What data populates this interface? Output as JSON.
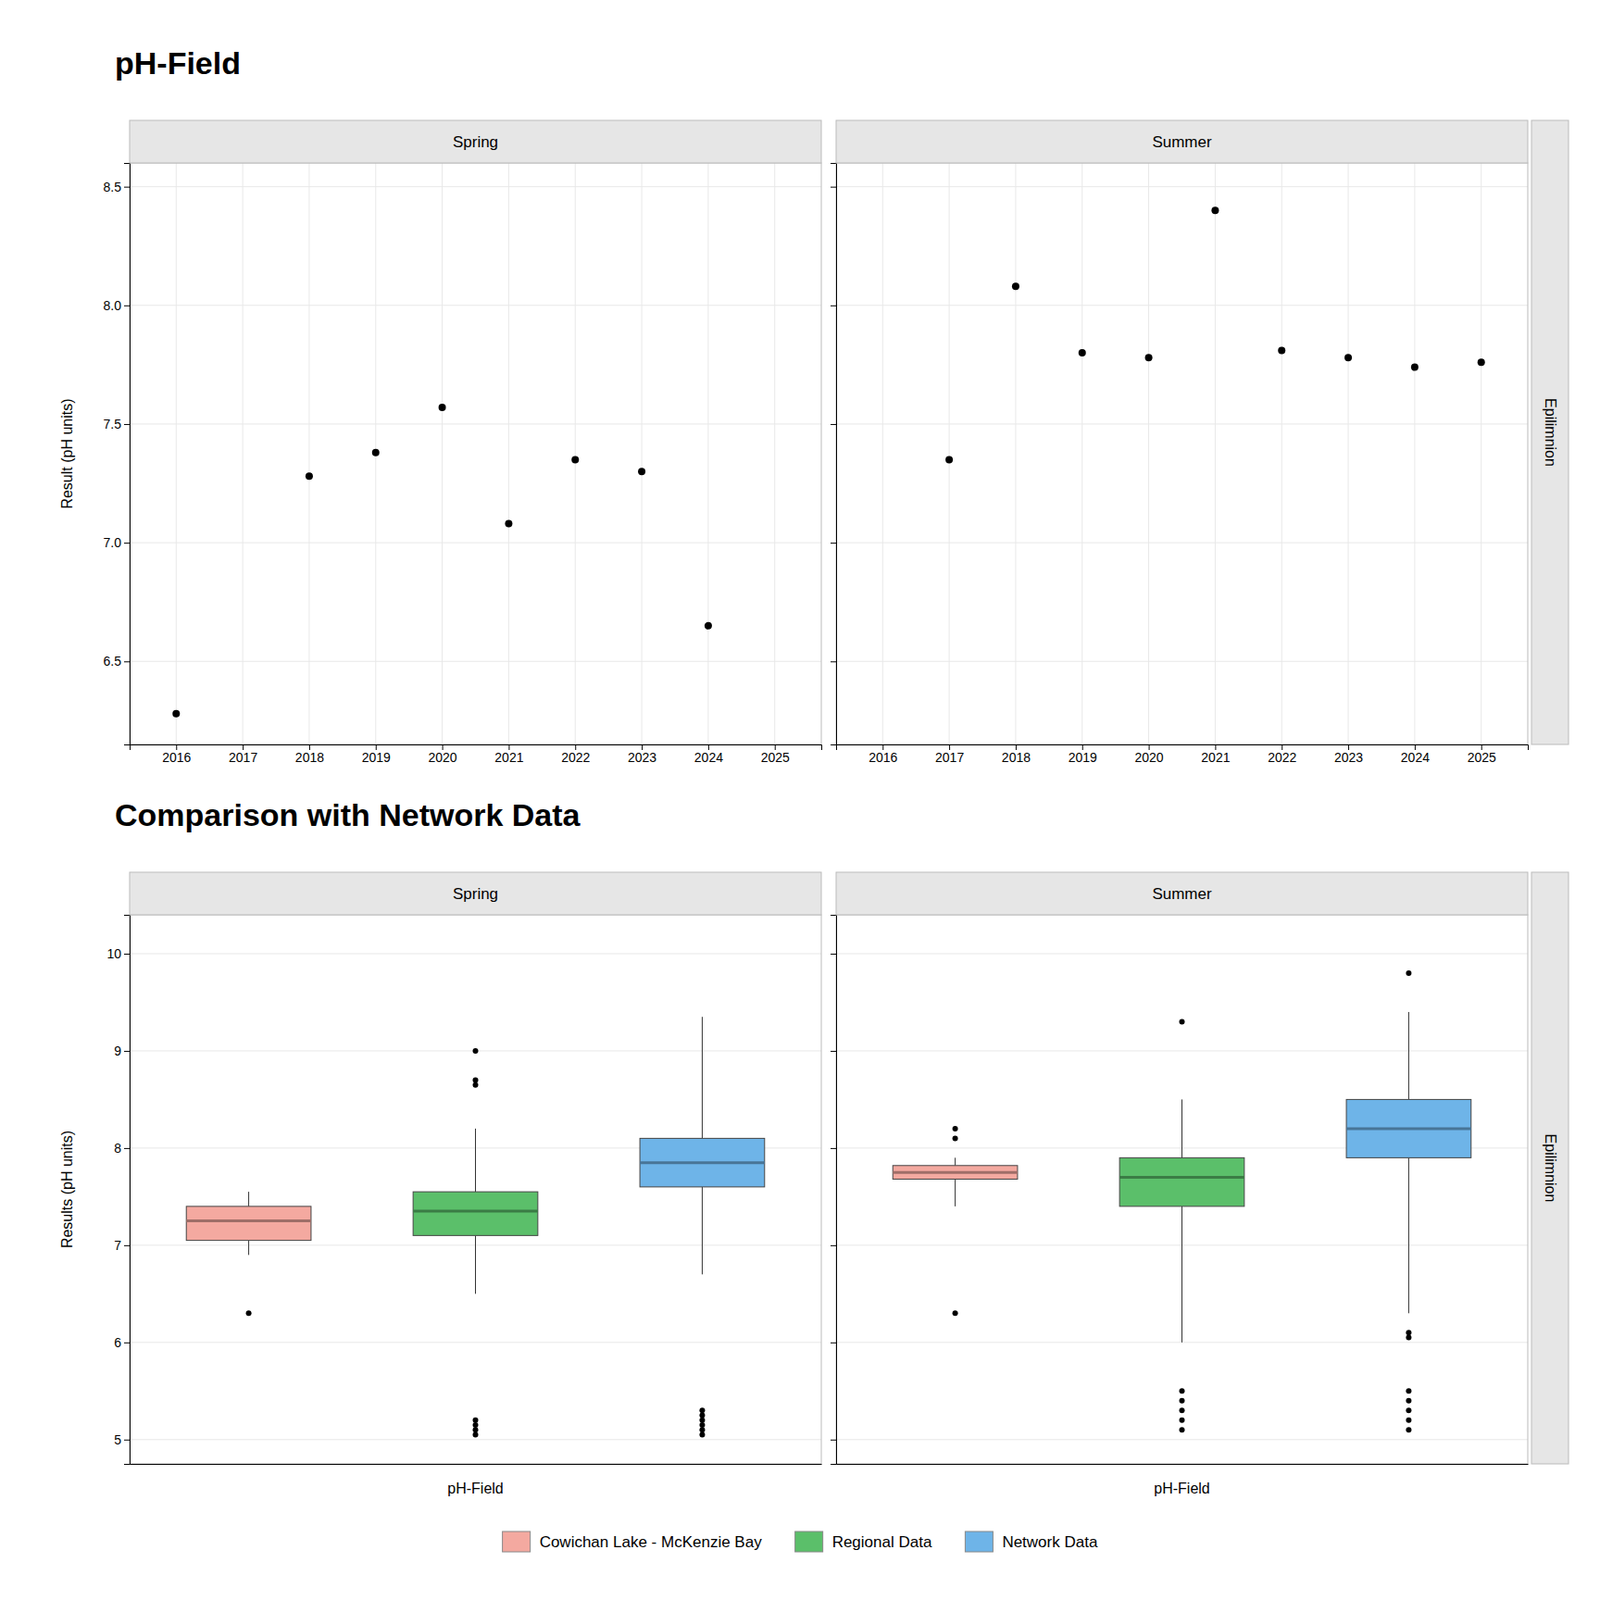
{
  "chart_data": [
    {
      "type": "scatter",
      "title": "pH-Field",
      "subtitle": "Spring",
      "y_label": "Result (pH units)",
      "x": [
        2016,
        2018,
        2019,
        2020,
        2021,
        2022,
        2023,
        2024
      ],
      "values": [
        6.28,
        7.28,
        7.38,
        7.57,
        7.08,
        7.35,
        7.3,
        6.65
      ],
      "color": "#000000",
      "xlim": [
        2015.3,
        2025.7
      ],
      "xticks": [
        2016,
        2017,
        2018,
        2019,
        2020,
        2021,
        2022,
        2023,
        2024,
        2025
      ],
      "ylim": [
        6.15,
        8.6
      ],
      "yticks": [
        6.5,
        {
          "value": 7,
          "label": "7.0"
        },
        7.5,
        {
          "value": 8,
          "label": "8.0"
        },
        8.5
      ],
      "grid": true
    },
    {
      "type": "scatter",
      "subtitle": "Summer",
      "annotations": [
        "Epilimnion"
      ],
      "x": [
        2017,
        2018,
        2019,
        2020,
        2021,
        2022,
        2023,
        2024,
        2025
      ],
      "values": [
        7.35,
        8.08,
        7.8,
        7.78,
        8.4,
        7.81,
        7.78,
        7.74,
        7.76
      ],
      "color": "#000000",
      "xlim": [
        2015.3,
        2025.7
      ],
      "xticks": [
        2016,
        2017,
        2018,
        2019,
        2020,
        2021,
        2022,
        2023,
        2024,
        2025
      ],
      "ylim": [
        6.15,
        8.6
      ],
      "yticks": [
        6.5,
        {
          "value": 7,
          "label": "7.0"
        },
        7.5,
        {
          "value": 8,
          "label": "8.0"
        },
        8.5
      ],
      "grid": true,
      "tick_labels": "x"
    },
    {
      "type": "box",
      "title": "Comparison with Network Data",
      "subtitle": "Spring",
      "x_label": "pH-Field",
      "y_label": "Results (pH units)",
      "series": [
        {
          "name": "Cowichan Lake - McKenzie Bay",
          "color": "#F4A9A0",
          "median": 7.25,
          "q1": 7.05,
          "q3": 7.4,
          "whisker_low": 6.9,
          "whisker_high": 7.55,
          "outliers_low": [
            6.3
          ],
          "outliers_high": []
        },
        {
          "name": "Regional Data",
          "color": "#5BBF6A",
          "median": 7.35,
          "q1": 7.1,
          "q3": 7.55,
          "whisker_low": 6.5,
          "whisker_high": 8.2,
          "outliers_low": [
            5.05,
            5.1,
            5.15,
            5.2
          ],
          "outliers_high": [
            8.65,
            8.7,
            9.0
          ]
        },
        {
          "name": "Network Data",
          "color": "#6EB4E8",
          "median": 7.85,
          "q1": 7.6,
          "q3": 8.1,
          "whisker_low": 6.7,
          "whisker_high": 9.35,
          "outliers_low": [
            5.05,
            5.1,
            5.15,
            5.2,
            5.25,
            5.3
          ],
          "outliers_high": []
        }
      ],
      "ylim": [
        4.75,
        10.4
      ],
      "yticks": [
        5,
        6,
        7,
        8,
        9,
        10
      ],
      "grid": true,
      "tick_labels": "y",
      "legend": "bottom"
    },
    {
      "type": "box",
      "subtitle": "Summer",
      "annotations": [
        "Epilimnion"
      ],
      "x_label": "pH-Field",
      "series": [
        {
          "name": "Cowichan Lake - McKenzie Bay",
          "color": "#F4A9A0",
          "median": 7.75,
          "q1": 7.68,
          "q3": 7.82,
          "whisker_low": 7.4,
          "whisker_high": 7.9,
          "outliers_low": [
            6.3
          ],
          "outliers_high": [
            8.1,
            8.2
          ]
        },
        {
          "name": "Regional Data",
          "color": "#5BBF6A",
          "median": 7.7,
          "q1": 7.4,
          "q3": 7.9,
          "whisker_low": 6.0,
          "whisker_high": 8.5,
          "outliers_low": [
            5.1,
            5.2,
            5.3,
            5.4,
            5.5
          ],
          "outliers_high": [
            9.3
          ]
        },
        {
          "name": "Network Data",
          "color": "#6EB4E8",
          "median": 8.2,
          "q1": 7.9,
          "q3": 8.5,
          "whisker_low": 6.3,
          "whisker_high": 9.4,
          "outliers_low": [
            5.1,
            5.2,
            5.3,
            5.4,
            5.5,
            6.05,
            6.1
          ],
          "outliers_high": [
            9.8
          ]
        }
      ],
      "ylim": [
        4.75,
        10.4
      ],
      "yticks": [
        5,
        6,
        7,
        8,
        9,
        10
      ],
      "grid": true,
      "tick_labels": false
    }
  ]
}
